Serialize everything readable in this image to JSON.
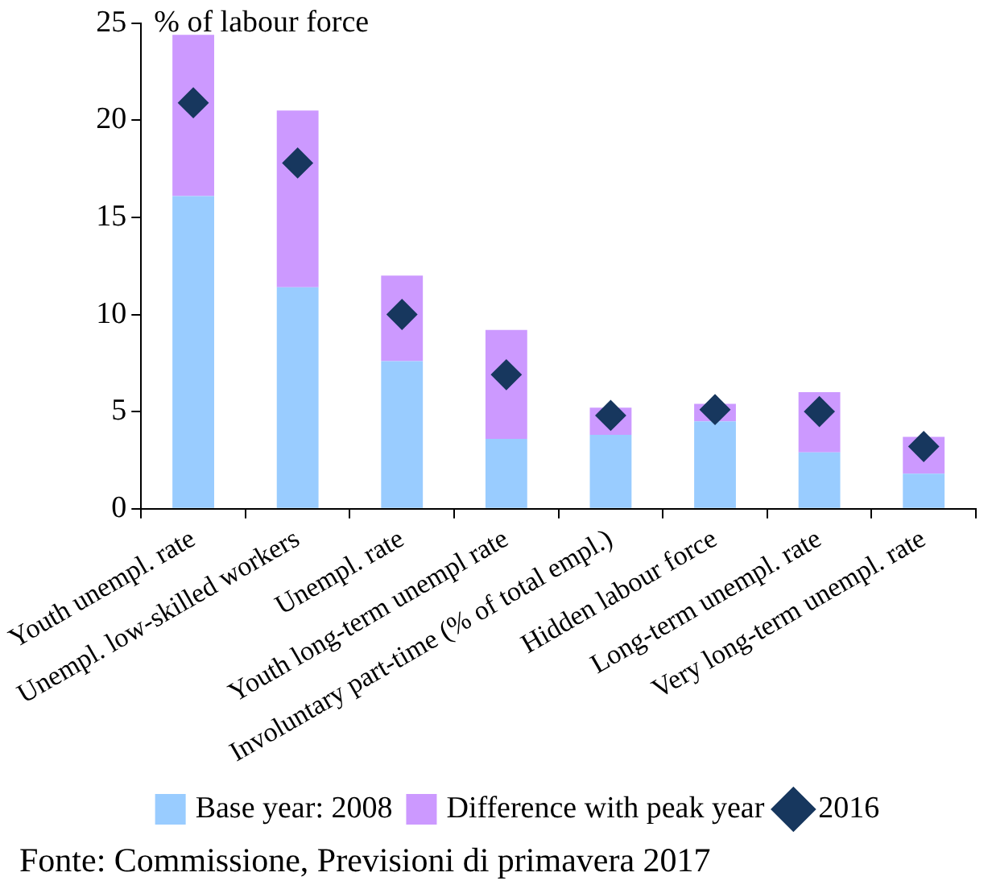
{
  "chart_data": {
    "type": "bar",
    "stacked": true,
    "ylabel": "% of labour force",
    "categories": [
      "Youth unempl. rate",
      "Unempl. low-skilled workers",
      "Unempl. rate",
      "Youth long-term unempl rate",
      "Involuntary part-time (% of total empl.)",
      "Hidden labour force",
      "Long-term unempl. rate",
      "Very long-term unempl. rate"
    ],
    "series": [
      {
        "name": "Base year: 2008",
        "color": "#99ccff",
        "values": [
          16.1,
          11.4,
          7.6,
          3.6,
          3.8,
          4.5,
          2.9,
          1.8
        ]
      },
      {
        "name": "Difference with peak year",
        "color": "#cc99ff",
        "values": [
          8.3,
          9.1,
          4.4,
          5.6,
          1.4,
          0.9,
          3.1,
          1.9
        ]
      },
      {
        "name": "2016",
        "type": "scatter",
        "color": "#17375e",
        "marker": "diamond",
        "x": [
          "Youth unempl. rate",
          "Unempl. low-skilled workers",
          "Unempl. rate",
          "Youth long-term unempl rate",
          "Involuntary part-time (% of total empl.)",
          "Hidden labour force",
          "Long-term unempl. rate",
          "Very long-term unempl. rate"
        ],
        "values": [
          20.9,
          17.8,
          10.0,
          6.9,
          4.8,
          5.1,
          5.0,
          3.2
        ]
      }
    ],
    "ylim": [
      0,
      25
    ],
    "yticks": [
      0,
      5,
      10,
      15,
      20,
      25
    ],
    "grid": false,
    "legend": "bottom",
    "annotations": [
      "Fonte: Commissione, Previsioni di primavera 2017"
    ]
  }
}
